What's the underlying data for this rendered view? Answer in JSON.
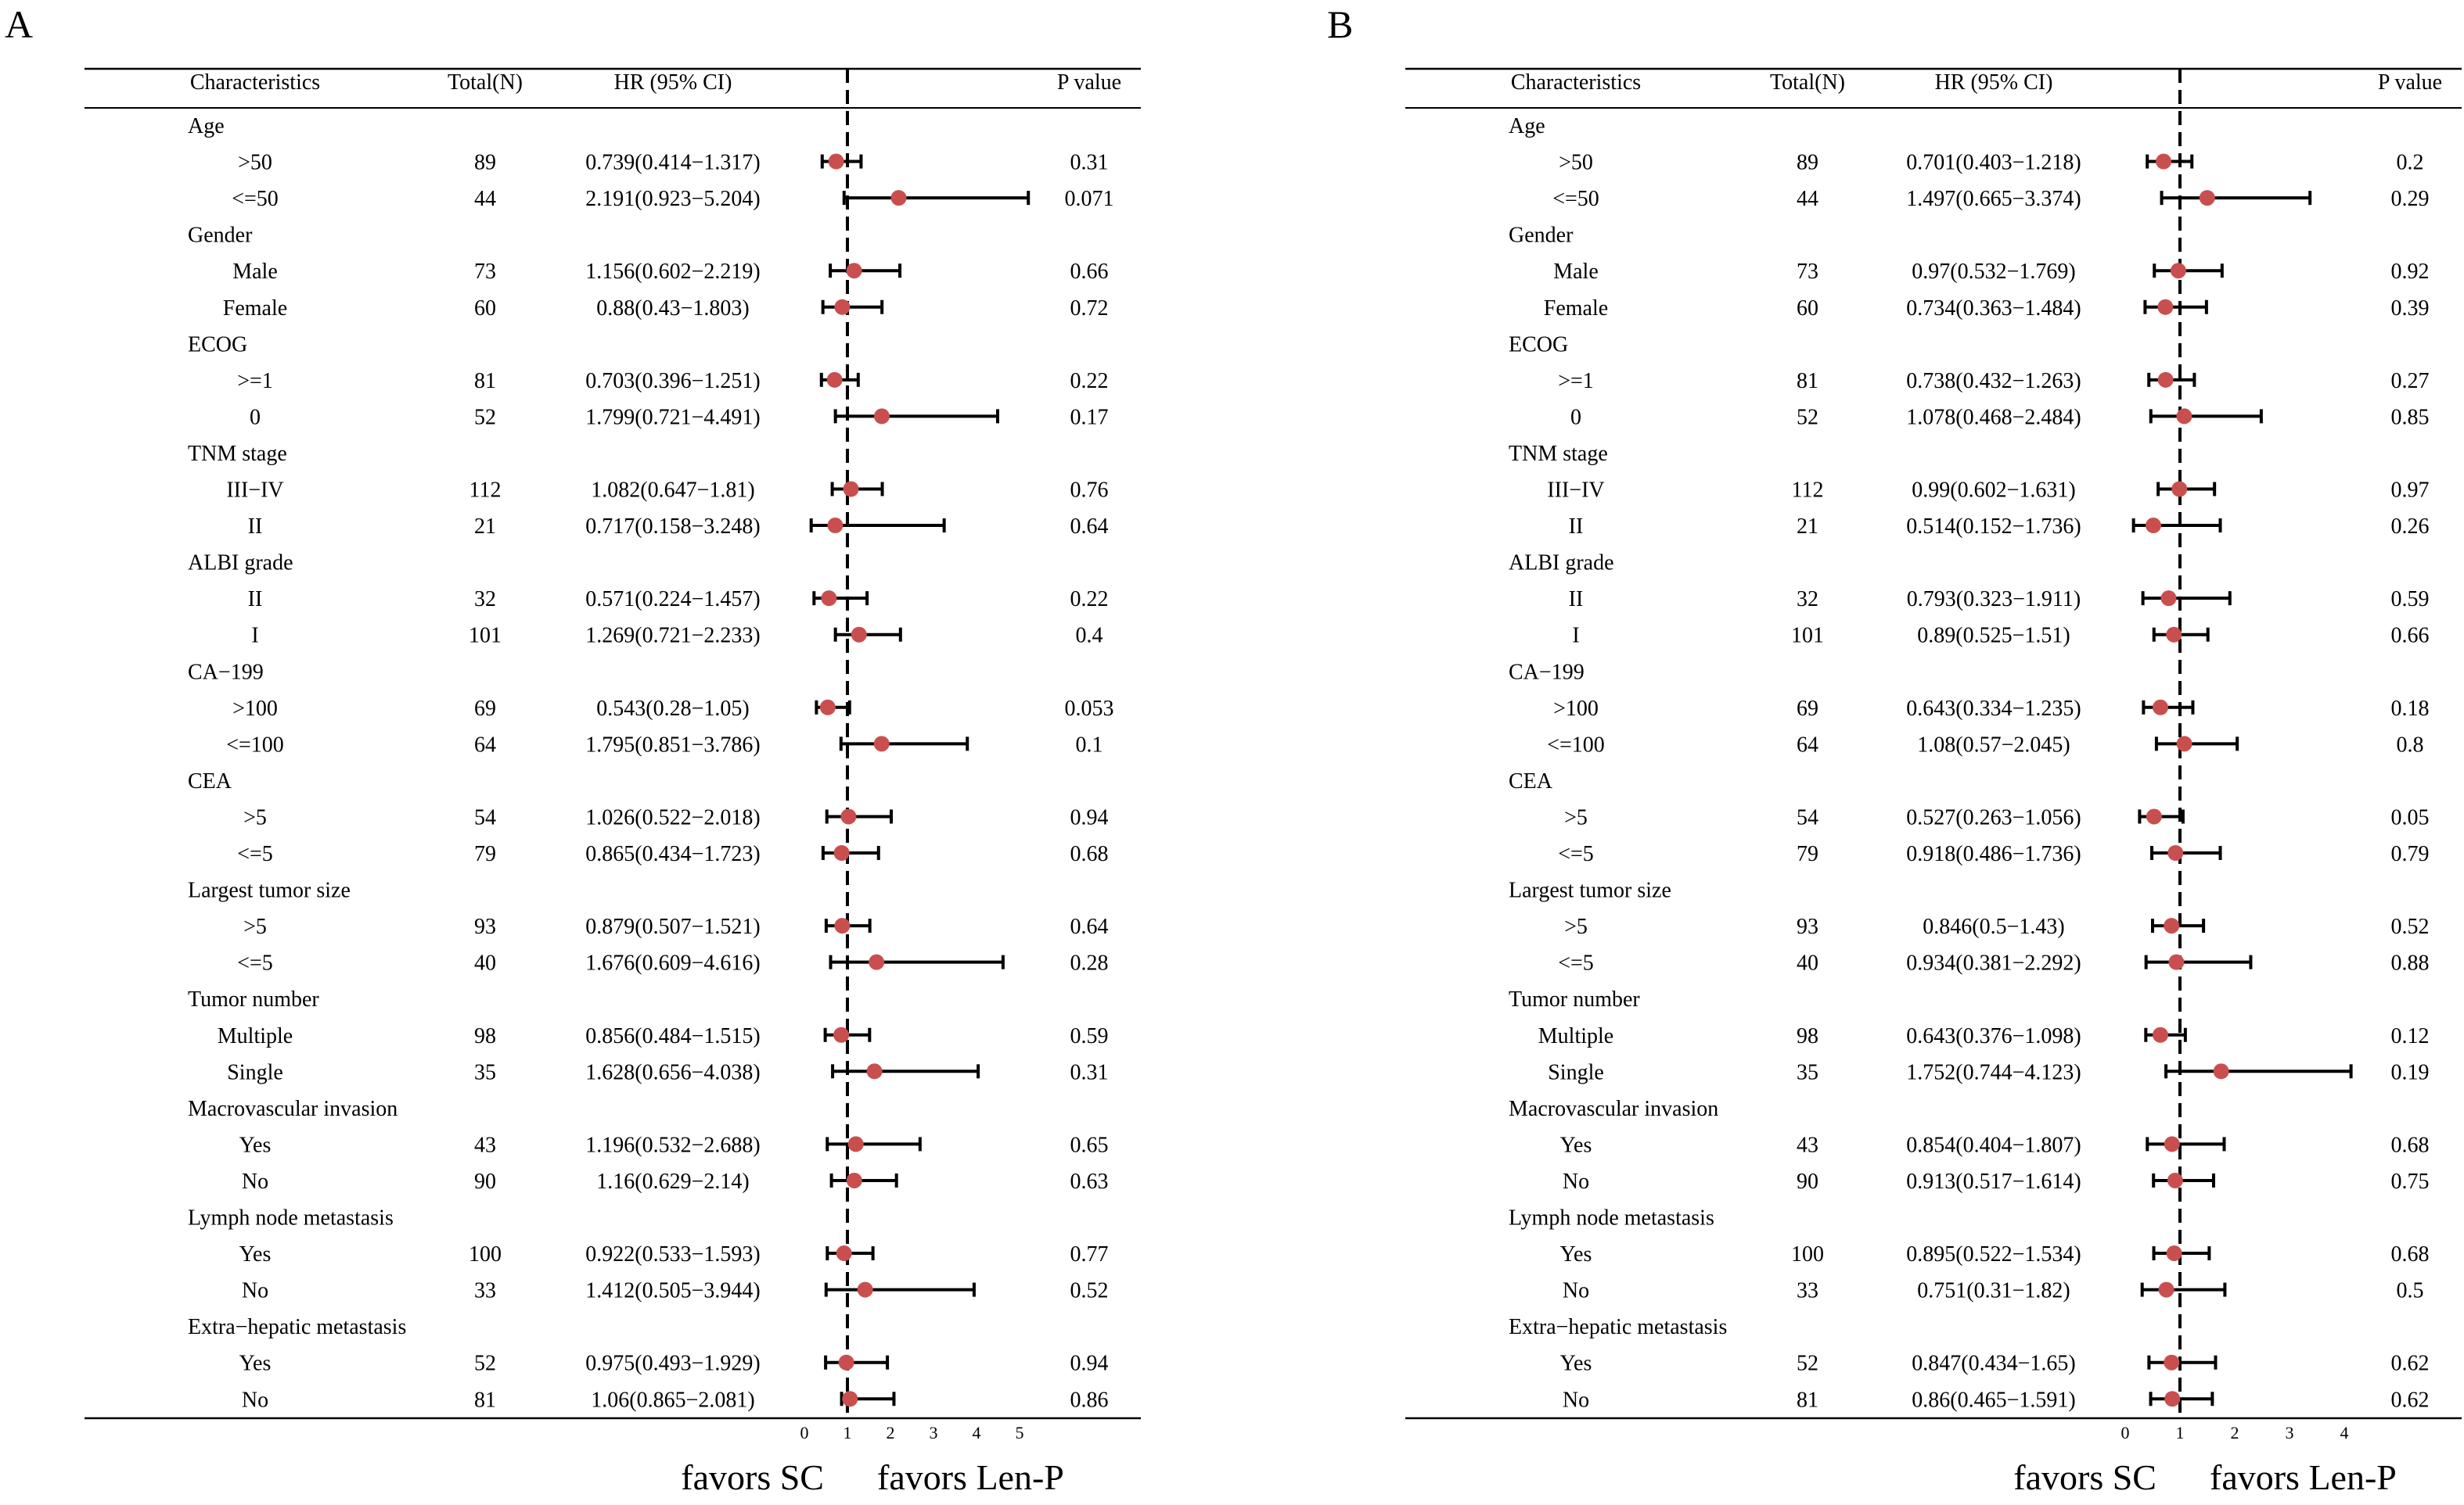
{
  "figure": {
    "panel_labels": [
      "A",
      "B"
    ],
    "columns": {
      "characteristics": "Characteristics",
      "total": "Total(N)",
      "hr": "HR (95% CI)",
      "p": "P value"
    },
    "favors_left": "favors SC",
    "favors_right": "favors Len-P",
    "marker_color": "#c94f4f"
  },
  "chart_data": [
    {
      "type": "forest",
      "panel": "A",
      "title": "",
      "xlabel": "",
      "ylabel": "",
      "reference_line": 1,
      "xlim": [
        0,
        5
      ],
      "xticks": [
        "0",
        "1",
        "2",
        "3",
        "4",
        "5"
      ],
      "rows": [
        {
          "label": "Age",
          "header": true
        },
        {
          "label": ">50",
          "n": "89",
          "hr_text": "0.739(0.414−1.317)",
          "hr": 0.739,
          "lo": 0.414,
          "hi": 1.317,
          "p": "0.31"
        },
        {
          "label": "<=50",
          "n": "44",
          "hr_text": "2.191(0.923−5.204)",
          "hr": 2.191,
          "lo": 0.923,
          "hi": 5.204,
          "p": "0.071"
        },
        {
          "label": "Gender",
          "header": true
        },
        {
          "label": "Male",
          "n": "73",
          "hr_text": "1.156(0.602−2.219)",
          "hr": 1.156,
          "lo": 0.602,
          "hi": 2.219,
          "p": "0.66"
        },
        {
          "label": "Female",
          "n": "60",
          "hr_text": "0.88(0.43−1.803)",
          "hr": 0.88,
          "lo": 0.43,
          "hi": 1.803,
          "p": "0.72"
        },
        {
          "label": "ECOG",
          "header": true
        },
        {
          "label": ">=1",
          "n": "81",
          "hr_text": "0.703(0.396−1.251)",
          "hr": 0.703,
          "lo": 0.396,
          "hi": 1.251,
          "p": "0.22"
        },
        {
          "label": "0",
          "n": "52",
          "hr_text": "1.799(0.721−4.491)",
          "hr": 1.799,
          "lo": 0.721,
          "hi": 4.491,
          "p": "0.17"
        },
        {
          "label": "TNM stage",
          "header": true
        },
        {
          "label": "III−IV",
          "n": "112",
          "hr_text": "1.082(0.647−1.81)",
          "hr": 1.082,
          "lo": 0.647,
          "hi": 1.81,
          "p": "0.76"
        },
        {
          "label": "II",
          "n": "21",
          "hr_text": "0.717(0.158−3.248)",
          "hr": 0.717,
          "lo": 0.158,
          "hi": 3.248,
          "p": "0.64"
        },
        {
          "label": "ALBI grade",
          "header": true
        },
        {
          "label": "II",
          "n": "32",
          "hr_text": "0.571(0.224−1.457)",
          "hr": 0.571,
          "lo": 0.224,
          "hi": 1.457,
          "p": "0.22"
        },
        {
          "label": "I",
          "n": "101",
          "hr_text": "1.269(0.721−2.233)",
          "hr": 1.269,
          "lo": 0.721,
          "hi": 2.233,
          "p": "0.4"
        },
        {
          "label": "CA−199",
          "header": true
        },
        {
          "label": ">100",
          "n": "69",
          "hr_text": "0.543(0.28−1.05)",
          "hr": 0.543,
          "lo": 0.28,
          "hi": 1.05,
          "p": "0.053"
        },
        {
          "label": "<=100",
          "n": "64",
          "hr_text": "1.795(0.851−3.786)",
          "hr": 1.795,
          "lo": 0.851,
          "hi": 3.786,
          "p": "0.1"
        },
        {
          "label": "CEA",
          "header": true
        },
        {
          "label": ">5",
          "n": "54",
          "hr_text": "1.026(0.522−2.018)",
          "hr": 1.026,
          "lo": 0.522,
          "hi": 2.018,
          "p": "0.94"
        },
        {
          "label": "<=5",
          "n": "79",
          "hr_text": "0.865(0.434−1.723)",
          "hr": 0.865,
          "lo": 0.434,
          "hi": 1.723,
          "p": "0.68"
        },
        {
          "label": "Largest tumor size",
          "header": true
        },
        {
          "label": ">5",
          "n": "93",
          "hr_text": "0.879(0.507−1.521)",
          "hr": 0.879,
          "lo": 0.507,
          "hi": 1.521,
          "p": "0.64"
        },
        {
          "label": "<=5",
          "n": "40",
          "hr_text": "1.676(0.609−4.616)",
          "hr": 1.676,
          "lo": 0.609,
          "hi": 4.616,
          "p": "0.28"
        },
        {
          "label": "Tumor number",
          "header": true
        },
        {
          "label": "Multiple",
          "n": "98",
          "hr_text": "0.856(0.484−1.515)",
          "hr": 0.856,
          "lo": 0.484,
          "hi": 1.515,
          "p": "0.59"
        },
        {
          "label": "Single",
          "n": "35",
          "hr_text": "1.628(0.656−4.038)",
          "hr": 1.628,
          "lo": 0.656,
          "hi": 4.038,
          "p": "0.31"
        },
        {
          "label": "Macrovascular invasion",
          "header": true
        },
        {
          "label": "Yes",
          "n": "43",
          "hr_text": "1.196(0.532−2.688)",
          "hr": 1.196,
          "lo": 0.532,
          "hi": 2.688,
          "p": "0.65"
        },
        {
          "label": "No",
          "n": "90",
          "hr_text": "1.16(0.629−2.14)",
          "hr": 1.16,
          "lo": 0.629,
          "hi": 2.14,
          "p": "0.63"
        },
        {
          "label": "Lymph node metastasis",
          "header": true
        },
        {
          "label": "Yes",
          "n": "100",
          "hr_text": "0.922(0.533−1.593)",
          "hr": 0.922,
          "lo": 0.533,
          "hi": 1.593,
          "p": "0.77"
        },
        {
          "label": "No",
          "n": "33",
          "hr_text": "1.412(0.505−3.944)",
          "hr": 1.412,
          "lo": 0.505,
          "hi": 3.944,
          "p": "0.52"
        },
        {
          "label": "Extra−hepatic metastasis",
          "header": true
        },
        {
          "label": "Yes",
          "n": "52",
          "hr_text": "0.975(0.493−1.929)",
          "hr": 0.975,
          "lo": 0.493,
          "hi": 1.929,
          "p": "0.94"
        },
        {
          "label": "No",
          "n": "81",
          "hr_text": "1.06(0.865−2.081)",
          "hr": 1.06,
          "lo": 0.865,
          "hi": 2.081,
          "p": "0.86"
        }
      ]
    },
    {
      "type": "forest",
      "panel": "B",
      "title": "",
      "xlabel": "",
      "ylabel": "",
      "reference_line": 1,
      "xlim": [
        0,
        4
      ],
      "xticks": [
        "0",
        "1",
        "2",
        "3",
        "4"
      ],
      "rows": [
        {
          "label": "Age",
          "header": true
        },
        {
          "label": ">50",
          "n": "89",
          "hr_text": "0.701(0.403−1.218)",
          "hr": 0.701,
          "lo": 0.403,
          "hi": 1.218,
          "p": "0.2"
        },
        {
          "label": "<=50",
          "n": "44",
          "hr_text": "1.497(0.665−3.374)",
          "hr": 1.497,
          "lo": 0.665,
          "hi": 3.374,
          "p": "0.29"
        },
        {
          "label": "Gender",
          "header": true
        },
        {
          "label": "Male",
          "n": "73",
          "hr_text": "0.97(0.532−1.769)",
          "hr": 0.97,
          "lo": 0.532,
          "hi": 1.769,
          "p": "0.92"
        },
        {
          "label": "Female",
          "n": "60",
          "hr_text": "0.734(0.363−1.484)",
          "hr": 0.734,
          "lo": 0.363,
          "hi": 1.484,
          "p": "0.39"
        },
        {
          "label": "ECOG",
          "header": true
        },
        {
          "label": ">=1",
          "n": "81",
          "hr_text": "0.738(0.432−1.263)",
          "hr": 0.738,
          "lo": 0.432,
          "hi": 1.263,
          "p": "0.27"
        },
        {
          "label": "0",
          "n": "52",
          "hr_text": "1.078(0.468−2.484)",
          "hr": 1.078,
          "lo": 0.468,
          "hi": 2.484,
          "p": "0.85"
        },
        {
          "label": "TNM stage",
          "header": true
        },
        {
          "label": "III−IV",
          "n": "112",
          "hr_text": "0.99(0.602−1.631)",
          "hr": 0.99,
          "lo": 0.602,
          "hi": 1.631,
          "p": "0.97"
        },
        {
          "label": "II",
          "n": "21",
          "hr_text": "0.514(0.152−1.736)",
          "hr": 0.514,
          "lo": 0.152,
          "hi": 1.736,
          "p": "0.26"
        },
        {
          "label": "ALBI grade",
          "header": true
        },
        {
          "label": "II",
          "n": "32",
          "hr_text": "0.793(0.323−1.911)",
          "hr": 0.793,
          "lo": 0.323,
          "hi": 1.911,
          "p": "0.59"
        },
        {
          "label": "I",
          "n": "101",
          "hr_text": "0.89(0.525−1.51)",
          "hr": 0.89,
          "lo": 0.525,
          "hi": 1.51,
          "p": "0.66"
        },
        {
          "label": "CA−199",
          "header": true
        },
        {
          "label": ">100",
          "n": "69",
          "hr_text": "0.643(0.334−1.235)",
          "hr": 0.643,
          "lo": 0.334,
          "hi": 1.235,
          "p": "0.18"
        },
        {
          "label": "<=100",
          "n": "64",
          "hr_text": "1.08(0.57−2.045)",
          "hr": 1.08,
          "lo": 0.57,
          "hi": 2.045,
          "p": "0.8"
        },
        {
          "label": "CEA",
          "header": true
        },
        {
          "label": ">5",
          "n": "54",
          "hr_text": "0.527(0.263−1.056)",
          "hr": 0.527,
          "lo": 0.263,
          "hi": 1.056,
          "p": "0.05"
        },
        {
          "label": "<=5",
          "n": "79",
          "hr_text": "0.918(0.486−1.736)",
          "hr": 0.918,
          "lo": 0.486,
          "hi": 1.736,
          "p": "0.79"
        },
        {
          "label": "Largest tumor size",
          "header": true
        },
        {
          "label": ">5",
          "n": "93",
          "hr_text": "0.846(0.5−1.43)",
          "hr": 0.846,
          "lo": 0.5,
          "hi": 1.43,
          "p": "0.52"
        },
        {
          "label": "<=5",
          "n": "40",
          "hr_text": "0.934(0.381−2.292)",
          "hr": 0.934,
          "lo": 0.381,
          "hi": 2.292,
          "p": "0.88"
        },
        {
          "label": "Tumor number",
          "header": true
        },
        {
          "label": "Multiple",
          "n": "98",
          "hr_text": "0.643(0.376−1.098)",
          "hr": 0.643,
          "lo": 0.376,
          "hi": 1.098,
          "p": "0.12"
        },
        {
          "label": "Single",
          "n": "35",
          "hr_text": "1.752(0.744−4.123)",
          "hr": 1.752,
          "lo": 0.744,
          "hi": 4.123,
          "p": "0.19"
        },
        {
          "label": "Macrovascular invasion",
          "header": true
        },
        {
          "label": "Yes",
          "n": "43",
          "hr_text": "0.854(0.404−1.807)",
          "hr": 0.854,
          "lo": 0.404,
          "hi": 1.807,
          "p": "0.68"
        },
        {
          "label": "No",
          "n": "90",
          "hr_text": "0.913(0.517−1.614)",
          "hr": 0.913,
          "lo": 0.517,
          "hi": 1.614,
          "p": "0.75"
        },
        {
          "label": "Lymph node metastasis",
          "header": true
        },
        {
          "label": "Yes",
          "n": "100",
          "hr_text": "0.895(0.522−1.534)",
          "hr": 0.895,
          "lo": 0.522,
          "hi": 1.534,
          "p": "0.68"
        },
        {
          "label": "No",
          "n": "33",
          "hr_text": "0.751(0.31−1.82)",
          "hr": 0.751,
          "lo": 0.31,
          "hi": 1.82,
          "p": "0.5"
        },
        {
          "label": "Extra−hepatic metastasis",
          "header": true
        },
        {
          "label": "Yes",
          "n": "52",
          "hr_text": "0.847(0.434−1.65)",
          "hr": 0.847,
          "lo": 0.434,
          "hi": 1.65,
          "p": "0.62"
        },
        {
          "label": "No",
          "n": "81",
          "hr_text": "0.86(0.465−1.591)",
          "hr": 0.86,
          "lo": 0.465,
          "hi": 1.591,
          "p": "0.62"
        }
      ]
    }
  ]
}
